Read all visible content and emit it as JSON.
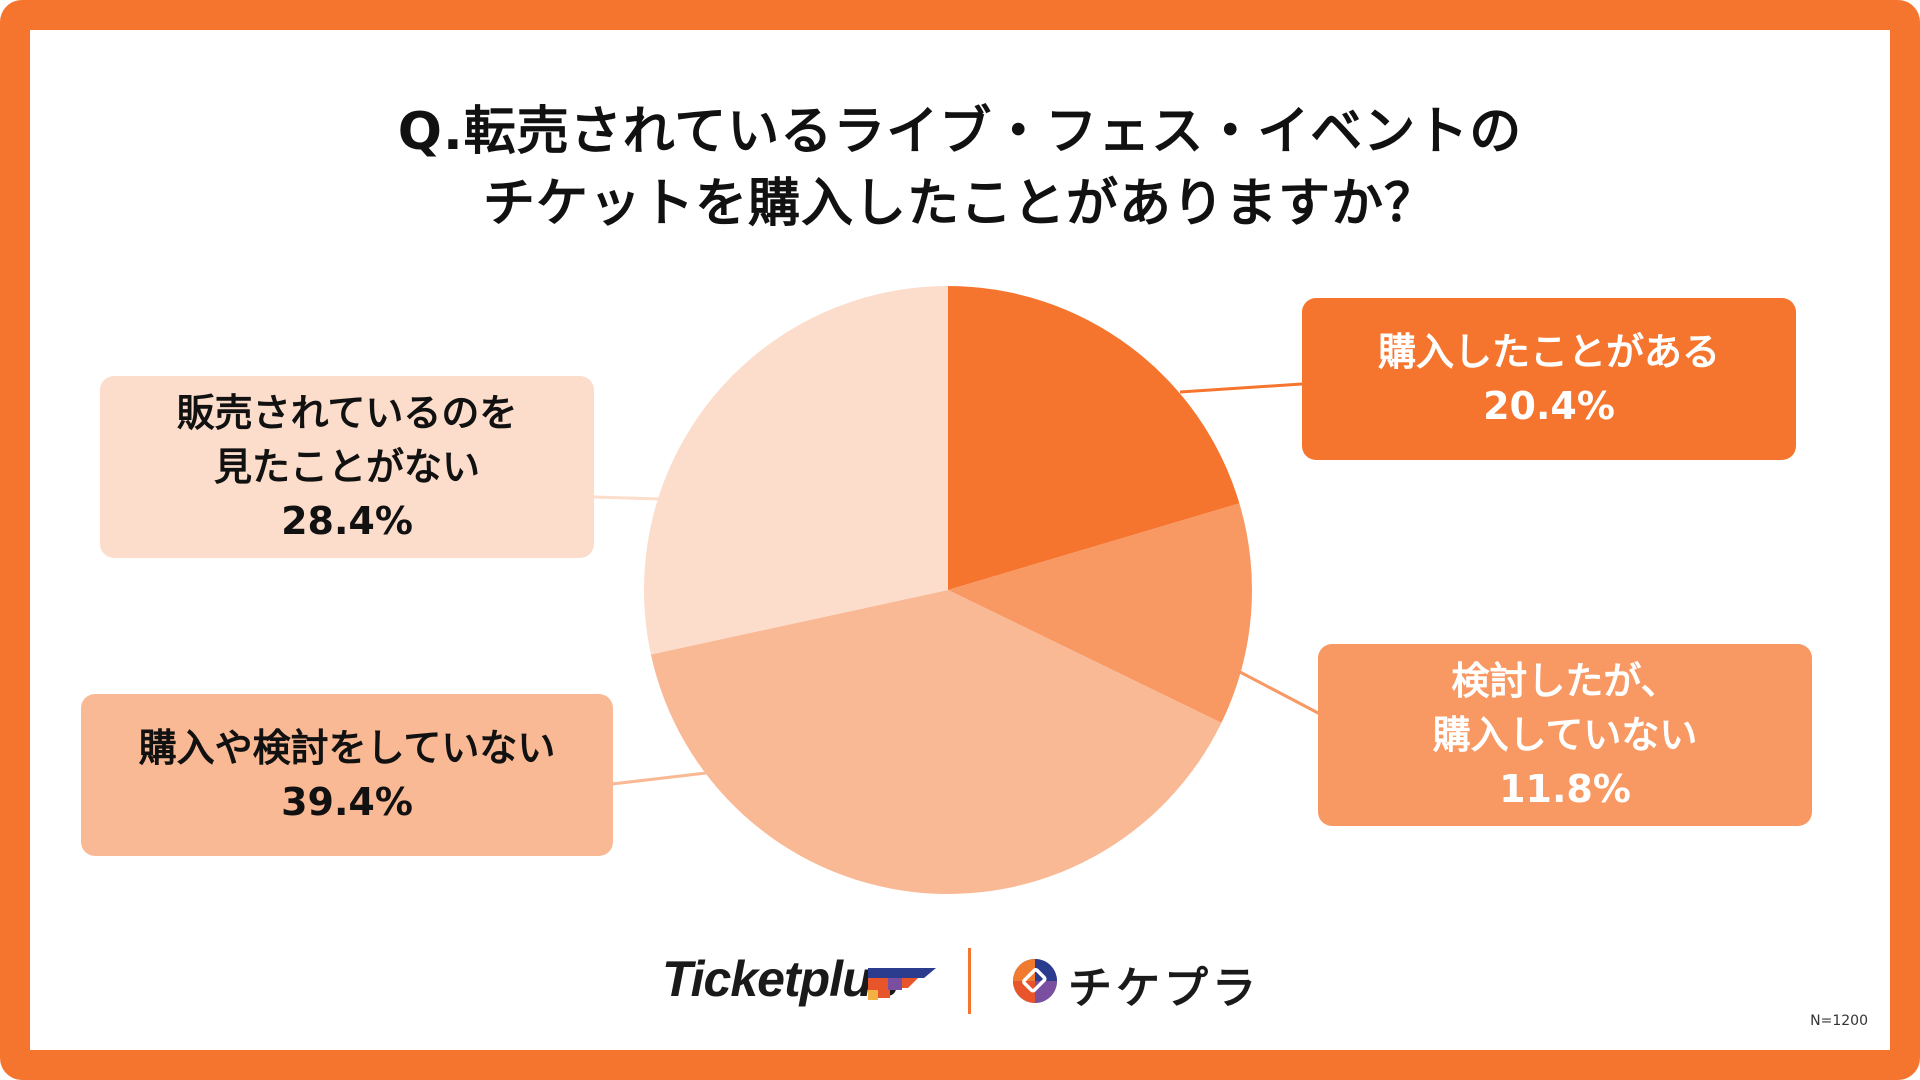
{
  "title": {
    "line1": "Q.転売されているライブ・フェス・イベントの",
    "line2": "チケットを購入したことがありますか？"
  },
  "chart_data": {
    "type": "pie",
    "title": "Q.転売されているライブ・フェス・イベントのチケットを購入したことがありますか？",
    "categories": [
      "購入したことがある",
      "検討したが、購入していない",
      "購入や検討をしていない",
      "販売されているのを見たことがない"
    ],
    "values": [
      20.4,
      11.8,
      39.4,
      28.4
    ],
    "unit": "%",
    "colors": [
      "#F5752E",
      "#F89862",
      "#FAB995",
      "#FCDDCB"
    ],
    "start_angle": "12 o'clock, clockwise",
    "sample_size": "N=1200",
    "legend": "callout labels"
  },
  "labels": [
    {
      "line1": "購入したことがある",
      "line2": "",
      "pct": "20.4%"
    },
    {
      "line1": "検討したが、",
      "line2": "購入していない",
      "pct": "11.8%"
    },
    {
      "line1": "購入や検討をしていない",
      "line2": "",
      "pct": "39.4%"
    },
    {
      "line1": "販売されているのを",
      "line2": "見たことがない",
      "pct": "28.4%"
    }
  ],
  "footer": {
    "logo1": "Ticketplus",
    "logo2": "チケプラ",
    "sample": "N=1200"
  },
  "colors": {
    "frame": "#F5752E",
    "slice1": "#F5752E",
    "slice2": "#F89862",
    "slice3": "#FAB995",
    "slice4": "#FCDDCB"
  }
}
